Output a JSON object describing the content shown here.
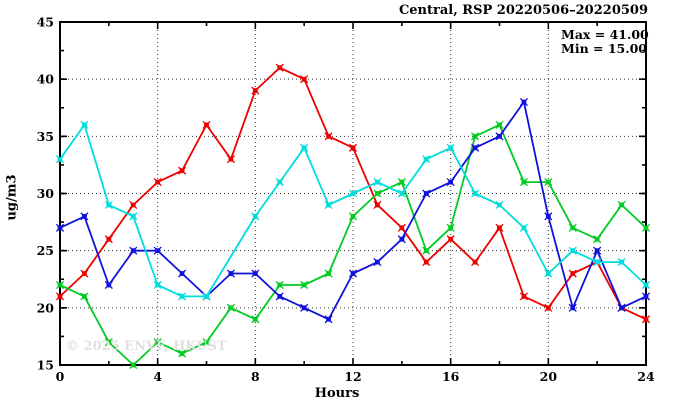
{
  "title": "Central, RSP 20220506–20220509",
  "annotation": {
    "max": "Max = 41.00",
    "min": "Min = 15.00"
  },
  "axes": {
    "xlabel": "Hours",
    "ylabel": "ug/m3"
  },
  "watermark": "© 2025 ENVF, HKUST",
  "chart_data": {
    "type": "line",
    "title": "Central, RSP 20220506–20220509",
    "xlabel": "Hours",
    "ylabel": "ug/m3",
    "max_value": 41.0,
    "min_value": 15.0,
    "x": [
      0,
      1,
      2,
      3,
      4,
      5,
      6,
      7,
      8,
      9,
      10,
      11,
      12,
      13,
      14,
      15,
      16,
      17,
      18,
      19,
      20,
      21,
      22,
      23,
      24
    ],
    "series": [
      {
        "name": "red",
        "color": "#ee0000",
        "values": [
          21,
          23,
          26,
          29,
          31,
          32,
          36,
          33,
          39,
          41,
          40,
          35,
          34,
          29,
          27,
          24,
          26,
          24,
          27,
          21,
          20,
          23,
          24,
          20,
          19
        ]
      },
      {
        "name": "green",
        "color": "#00cc22",
        "values": [
          22,
          21,
          17,
          15,
          17,
          16,
          17,
          20,
          19,
          22,
          22,
          23,
          28,
          30,
          31,
          25,
          27,
          35,
          36,
          31,
          31,
          27,
          26,
          29,
          27
        ]
      },
      {
        "name": "blue",
        "color": "#1111dd",
        "values": [
          27,
          28,
          22,
          25,
          25,
          23,
          21,
          23,
          23,
          21,
          20,
          19,
          23,
          24,
          26,
          30,
          31,
          34,
          35,
          38,
          28,
          20,
          25,
          20,
          21
        ]
      },
      {
        "name": "cyan",
        "color": "#00dddd",
        "values": [
          33,
          36,
          29,
          28,
          22,
          21,
          21,
          null,
          28,
          31,
          34,
          29,
          30,
          31,
          30,
          33,
          34,
          30,
          29,
          27,
          23,
          25,
          24,
          24,
          22
        ]
      }
    ],
    "xlim": [
      0,
      24
    ],
    "ylim": [
      15,
      45
    ],
    "x_major_tick": 4,
    "x_minor_tick": 2,
    "y_major_tick": 5,
    "y_minor_tick": 2.5,
    "grid": "dotted-major",
    "legend": "none"
  }
}
